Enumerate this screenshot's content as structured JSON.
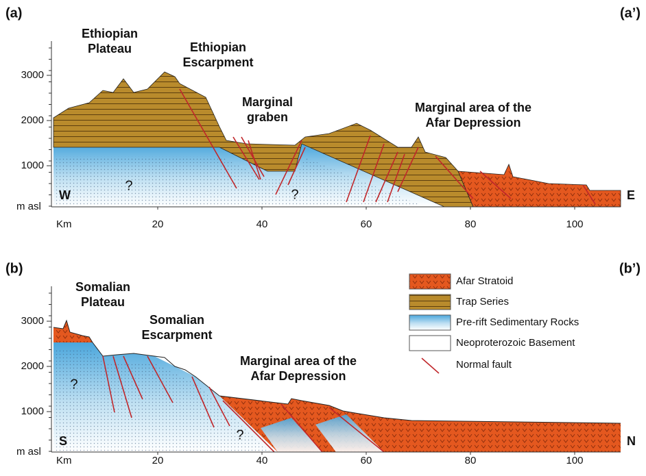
{
  "panels": [
    {
      "label": "(a)",
      "label_right": "(a’)",
      "y_axis_label": "m asl",
      "x_axis_label": "Km",
      "yticks": [
        1000,
        2000,
        3000
      ],
      "xticks": [
        20,
        40,
        60,
        80,
        100
      ],
      "left_end": "W",
      "right_end": "E",
      "annotations": [
        [
          "Ethiopian",
          "Plateau"
        ],
        [
          "Ethiopian",
          "Escarpment"
        ],
        [
          "Marginal",
          "graben"
        ],
        [
          "Marginal area of the",
          "Afar Depression"
        ]
      ],
      "unknowns": [
        "?",
        "?"
      ]
    },
    {
      "label": "(b)",
      "label_right": "(b’)",
      "y_axis_label": "m asl",
      "x_axis_label": "Km",
      "yticks": [
        1000,
        2000,
        3000
      ],
      "xticks": [
        20,
        40,
        60,
        80,
        100
      ],
      "left_end": "S",
      "right_end": "N",
      "annotations": [
        [
          "Somalian",
          "Plateau"
        ],
        [
          "Somalian",
          "Escarpment"
        ],
        [
          "Marginal area of the",
          "Afar Depression"
        ]
      ],
      "unknowns": [
        "?",
        "?"
      ]
    }
  ],
  "legend": [
    "Afar Stratoid",
    "Trap Series",
    "Pre-rift Sedimentary Rocks",
    "Neoproterozoic Basement",
    "Normal fault"
  ]
}
